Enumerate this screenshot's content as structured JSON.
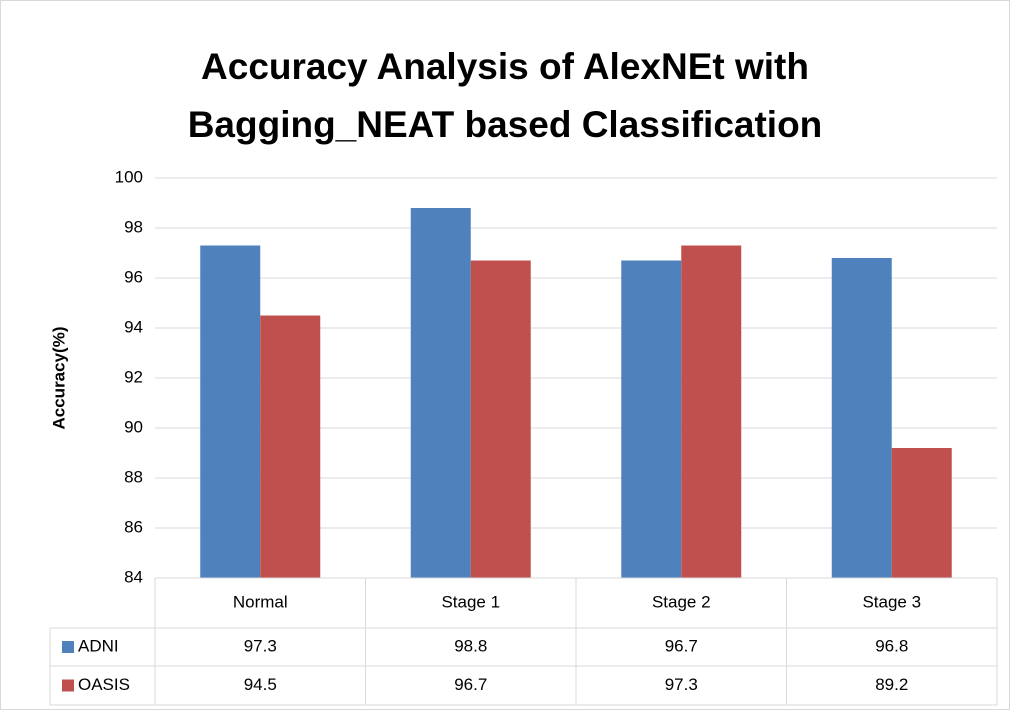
{
  "chart_data": {
    "type": "bar",
    "title": "Accuracy Analysis of AlexNEt with Bagging_NEAT based Classification",
    "y_label": "Accuracy(%)",
    "categories": [
      "Normal",
      "Stage 1",
      "Stage 2",
      "Stage 3"
    ],
    "series": [
      {
        "name": "ADNI",
        "color": "#4f81bd",
        "values": [
          97.3,
          98.8,
          96.7,
          96.8
        ]
      },
      {
        "name": "OASIS",
        "color": "#c0504d",
        "values": [
          94.5,
          96.7,
          97.3,
          89.2
        ]
      }
    ],
    "ylim": [
      84,
      100
    ],
    "yticks": [
      84,
      86,
      88,
      90,
      92,
      94,
      96,
      98,
      100
    ],
    "grid": true,
    "data_table": true
  }
}
